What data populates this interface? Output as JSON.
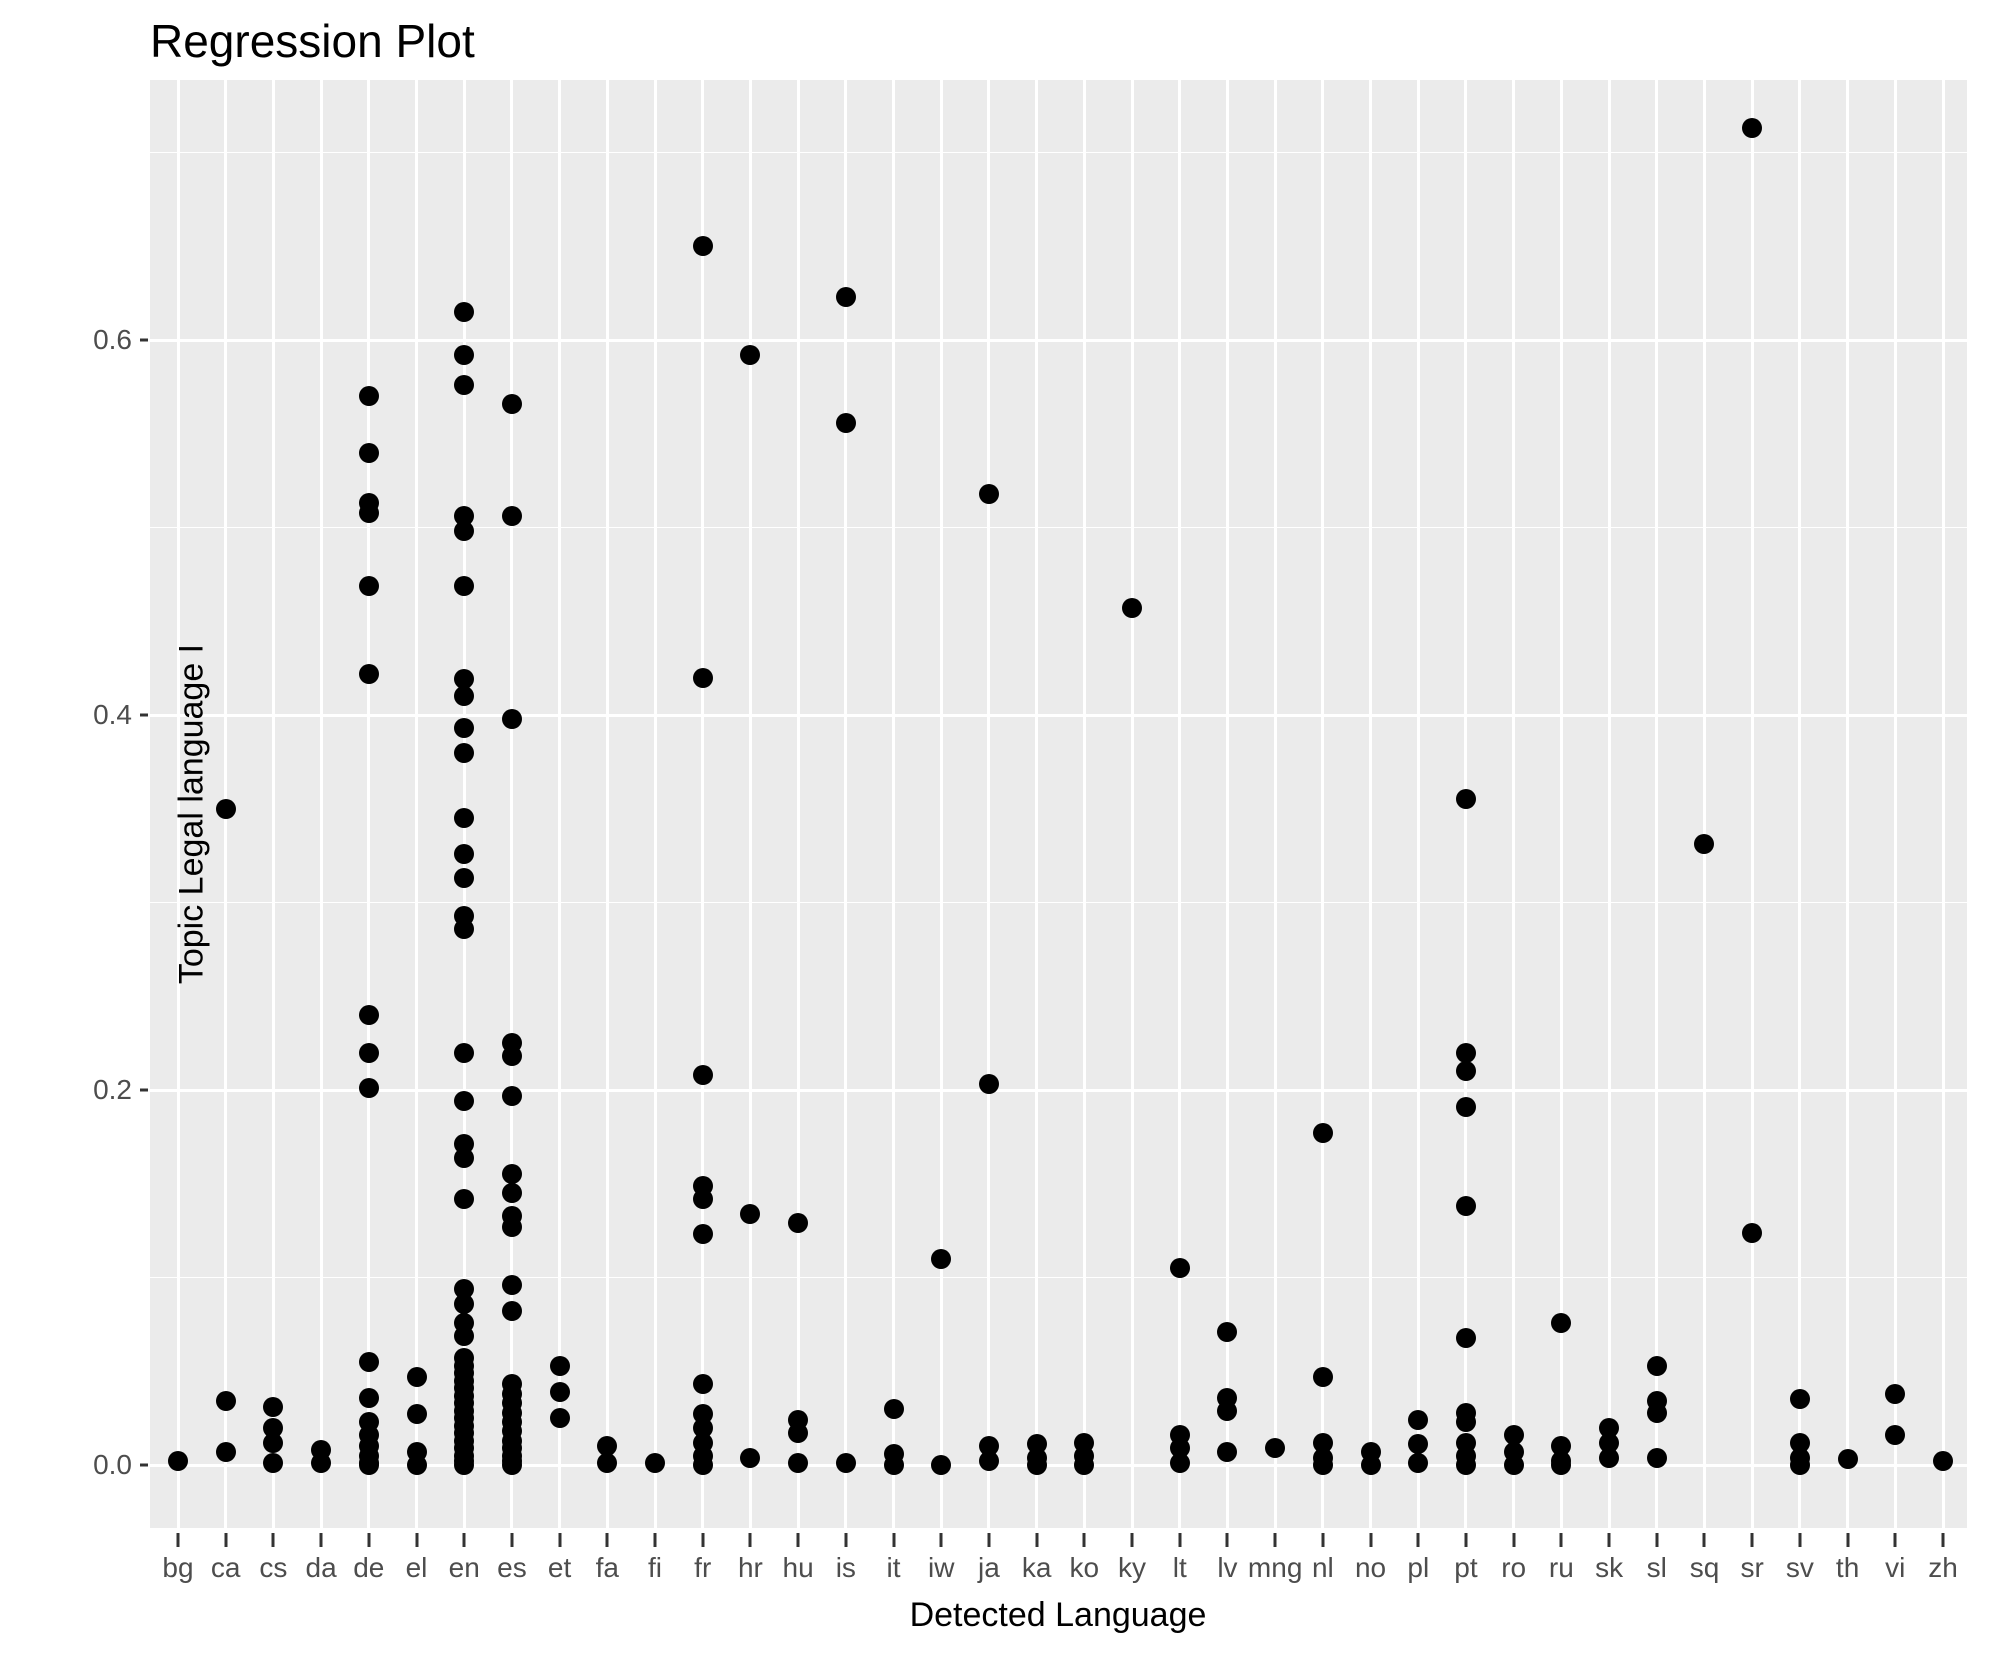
{
  "title": "Regression Plot",
  "axes": {
    "x_title": "Detected Language",
    "y_title": "Topic Legal language I",
    "y_tick_labels": [
      "0.0",
      "0.2",
      "0.4",
      "0.6"
    ],
    "y_tick_values": [
      0.0,
      0.2,
      0.4,
      0.6
    ],
    "y_minor_values": [
      0.1,
      0.3,
      0.5,
      0.7
    ]
  },
  "colors": {
    "panel_background": "#EBEBEB",
    "gridline": "#FFFFFF",
    "point": "#000000",
    "tick_label": "#4D4D4D",
    "tick_mark": "#333333"
  },
  "chart_data": {
    "type": "scatter",
    "title": "Regression Plot",
    "xlabel": "Detected Language",
    "ylabel": "Topic Legal language I",
    "ylim": [
      -0.034,
      0.739
    ],
    "grid": "on",
    "legend": "none",
    "categories": [
      "bg",
      "ca",
      "cs",
      "da",
      "de",
      "el",
      "en",
      "es",
      "et",
      "fa",
      "fi",
      "fr",
      "hr",
      "hu",
      "is",
      "it",
      "iw",
      "ja",
      "ka",
      "ko",
      "ky",
      "lt",
      "lv",
      "mng",
      "nl",
      "no",
      "pl",
      "pt",
      "ro",
      "ru",
      "sk",
      "sl",
      "sq",
      "sr",
      "sv",
      "th",
      "vi",
      "zh"
    ],
    "series": [
      {
        "name": "bg",
        "values": [
          0.002
        ]
      },
      {
        "name": "ca",
        "values": [
          0.35,
          0.034,
          0.007
        ]
      },
      {
        "name": "cs",
        "values": [
          0.031,
          0.02,
          0.012,
          0.001
        ]
      },
      {
        "name": "da",
        "values": [
          0.008,
          0.001
        ]
      },
      {
        "name": "de",
        "values": [
          0.57,
          0.54,
          0.513,
          0.508,
          0.469,
          0.422,
          0.24,
          0.22,
          0.201,
          0.055,
          0.036,
          0.023,
          0.016,
          0.01,
          0.005,
          0.001,
          0.0
        ]
      },
      {
        "name": "el",
        "values": [
          0.047,
          0.027,
          0.007,
          0.0
        ]
      },
      {
        "name": "en",
        "values": [
          0.615,
          0.592,
          0.576,
          0.506,
          0.498,
          0.469,
          0.419,
          0.41,
          0.393,
          0.38,
          0.345,
          0.326,
          0.313,
          0.293,
          0.286,
          0.22,
          0.194,
          0.171,
          0.164,
          0.142,
          0.094,
          0.086,
          0.076,
          0.069,
          0.057,
          0.053,
          0.049,
          0.045,
          0.041,
          0.037,
          0.033,
          0.029,
          0.025,
          0.021,
          0.017,
          0.013,
          0.009,
          0.005,
          0.002,
          0.0
        ]
      },
      {
        "name": "es",
        "values": [
          0.566,
          0.506,
          0.398,
          0.225,
          0.218,
          0.197,
          0.155,
          0.145,
          0.133,
          0.127,
          0.096,
          0.082,
          0.043,
          0.038,
          0.033,
          0.028,
          0.023,
          0.018,
          0.013,
          0.009,
          0.005,
          0.002,
          0.0
        ]
      },
      {
        "name": "et",
        "values": [
          0.053,
          0.039,
          0.025
        ]
      },
      {
        "name": "fa",
        "values": [
          0.01,
          0.001
        ]
      },
      {
        "name": "fi",
        "values": [
          0.001
        ]
      },
      {
        "name": "fr",
        "values": [
          0.65,
          0.42,
          0.208,
          0.149,
          0.142,
          0.123,
          0.043,
          0.027,
          0.02,
          0.012,
          0.005,
          0.0
        ]
      },
      {
        "name": "hr",
        "values": [
          0.592,
          0.134,
          0.004
        ]
      },
      {
        "name": "hu",
        "values": [
          0.129,
          0.024,
          0.017,
          0.001
        ]
      },
      {
        "name": "is",
        "values": [
          0.623,
          0.556,
          0.001
        ]
      },
      {
        "name": "it",
        "values": [
          0.03,
          0.006,
          0.0
        ]
      },
      {
        "name": "iw",
        "values": [
          0.11,
          0.0
        ]
      },
      {
        "name": "ja",
        "values": [
          0.518,
          0.203,
          0.01,
          0.002
        ]
      },
      {
        "name": "ka",
        "values": [
          0.011,
          0.004,
          0.0
        ]
      },
      {
        "name": "ko",
        "values": [
          0.012,
          0.005,
          0.0
        ]
      },
      {
        "name": "ky",
        "values": [
          0.457
        ]
      },
      {
        "name": "lt",
        "values": [
          0.105,
          0.016,
          0.009,
          0.001
        ]
      },
      {
        "name": "lv",
        "values": [
          0.071,
          0.036,
          0.029,
          0.007
        ]
      },
      {
        "name": "mng",
        "values": [
          0.009
        ]
      },
      {
        "name": "nl",
        "values": [
          0.177,
          0.047,
          0.012,
          0.004,
          0.0
        ]
      },
      {
        "name": "no",
        "values": [
          0.007,
          0.0
        ]
      },
      {
        "name": "pl",
        "values": [
          0.024,
          0.011,
          0.001
        ]
      },
      {
        "name": "pt",
        "values": [
          0.355,
          0.22,
          0.21,
          0.191,
          0.138,
          0.068,
          0.028,
          0.023,
          0.012,
          0.005,
          0.0
        ]
      },
      {
        "name": "ro",
        "values": [
          0.016,
          0.007,
          0.0
        ]
      },
      {
        "name": "ru",
        "values": [
          0.076,
          0.01,
          0.002,
          0.0
        ]
      },
      {
        "name": "sk",
        "values": [
          0.02,
          0.012,
          0.004
        ]
      },
      {
        "name": "sl",
        "values": [
          0.053,
          0.034,
          0.028,
          0.004
        ]
      },
      {
        "name": "sq",
        "values": [
          0.331
        ]
      },
      {
        "name": "sr",
        "values": [
          0.713,
          0.124
        ]
      },
      {
        "name": "sv",
        "values": [
          0.035,
          0.012,
          0.004,
          0.0
        ]
      },
      {
        "name": "th",
        "values": [
          0.003
        ]
      },
      {
        "name": "vi",
        "values": [
          0.038,
          0.016
        ]
      },
      {
        "name": "zh",
        "values": [
          0.002
        ]
      }
    ]
  }
}
